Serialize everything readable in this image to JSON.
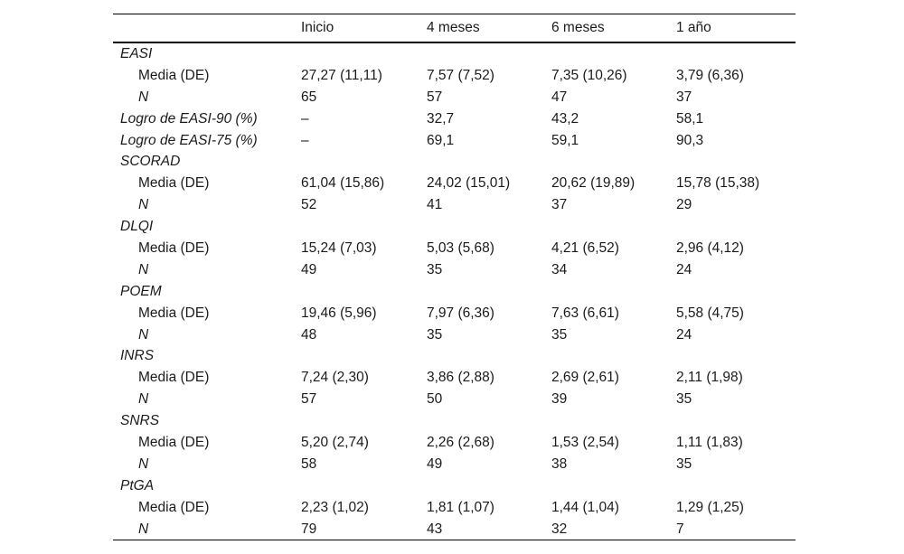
{
  "table": {
    "columns": [
      "",
      "Inicio",
      "4 meses",
      "6 meses",
      "1 año"
    ],
    "rows": [
      {
        "label": "EASI",
        "kind": "group",
        "values": [
          "",
          "",
          "",
          ""
        ]
      },
      {
        "label": "Media (DE)",
        "kind": "metric",
        "values": [
          "27,27 (11,11)",
          "7,57 (7,52)",
          "7,35 (10,26)",
          "3,79 (6,36)"
        ]
      },
      {
        "label": "N",
        "kind": "metric-italic",
        "values": [
          "65",
          "57",
          "47",
          "37"
        ]
      },
      {
        "label": "Logro de EASI-90 (%)",
        "kind": "group",
        "values": [
          "–",
          "32,7",
          "43,2",
          "58,1"
        ]
      },
      {
        "label": "Logro de EASI-75 (%)",
        "kind": "group",
        "values": [
          "–",
          "69,1",
          "59,1",
          "90,3"
        ]
      },
      {
        "label": "SCORAD",
        "kind": "group",
        "values": [
          "",
          "",
          "",
          ""
        ]
      },
      {
        "label": "Media (DE)",
        "kind": "metric",
        "values": [
          "61,04 (15,86)",
          "24,02 (15,01)",
          "20,62 (19,89)",
          "15,78 (15,38)"
        ]
      },
      {
        "label": "N",
        "kind": "metric-italic",
        "values": [
          "52",
          "41",
          "37",
          "29"
        ]
      },
      {
        "label": "DLQI",
        "kind": "group",
        "values": [
          "",
          "",
          "",
          ""
        ]
      },
      {
        "label": "Media (DE)",
        "kind": "metric",
        "values": [
          "15,24 (7,03)",
          "5,03 (5,68)",
          "4,21 (6,52)",
          "2,96 (4,12)"
        ]
      },
      {
        "label": "N",
        "kind": "metric-italic",
        "values": [
          "49",
          "35",
          "34",
          "24"
        ]
      },
      {
        "label": "POEM",
        "kind": "group",
        "values": [
          "",
          "",
          "",
          ""
        ]
      },
      {
        "label": "Media (DE)",
        "kind": "metric",
        "values": [
          "19,46 (5,96)",
          "7,97 (6,36)",
          "7,63 (6,61)",
          "5,58 (4,75)"
        ]
      },
      {
        "label": "N",
        "kind": "metric-italic",
        "values": [
          "48",
          "35",
          "35",
          "24"
        ]
      },
      {
        "label": "INRS",
        "kind": "group",
        "values": [
          "",
          "",
          "",
          ""
        ]
      },
      {
        "label": "Media (DE)",
        "kind": "metric",
        "values": [
          "7,24 (2,30)",
          "3,86 (2,88)",
          "2,69 (2,61)",
          "2,11 (1,98)"
        ]
      },
      {
        "label": "N",
        "kind": "metric-italic",
        "values": [
          "57",
          "50",
          "39",
          "35"
        ]
      },
      {
        "label": "SNRS",
        "kind": "group",
        "values": [
          "",
          "",
          "",
          ""
        ]
      },
      {
        "label": "Media (DE)",
        "kind": "metric",
        "values": [
          "5,20 (2,74)",
          "2,26 (2,68)",
          "1,53 (2,54)",
          "1,11 (1,83)"
        ]
      },
      {
        "label": "N",
        "kind": "metric-italic",
        "values": [
          "58",
          "49",
          "38",
          "35"
        ]
      },
      {
        "label": "PtGA",
        "kind": "group",
        "values": [
          "",
          "",
          "",
          ""
        ]
      },
      {
        "label": "Media (DE)",
        "kind": "metric",
        "values": [
          "2,23 (1,02)",
          "1,81 (1,07)",
          "1,44 (1,04)",
          "1,29 (1,25)"
        ]
      },
      {
        "label": "N",
        "kind": "metric-italic",
        "values": [
          "79",
          "43",
          "32",
          "7"
        ]
      }
    ]
  },
  "colors": {
    "text": "#1b1b1b",
    "rule": "#000000",
    "background": "#ffffff"
  }
}
